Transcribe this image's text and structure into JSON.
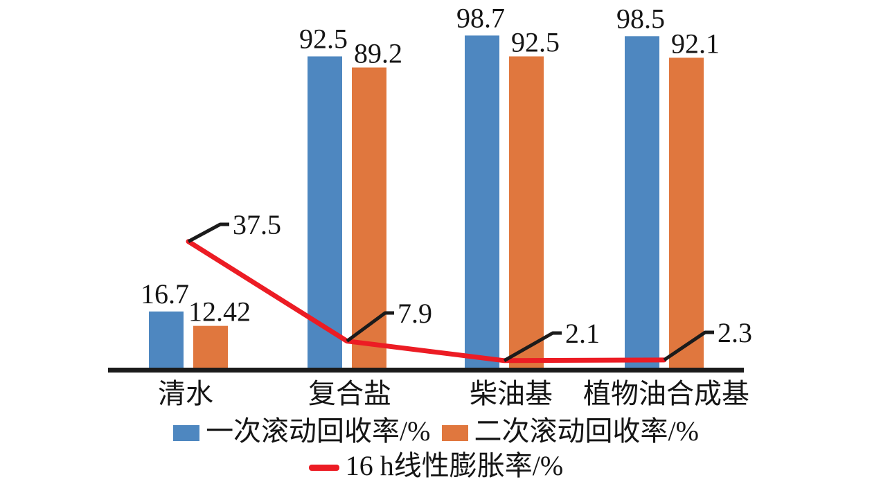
{
  "figure": {
    "background": "#ffffff",
    "axis_color": "#1b1b1b",
    "text_color": "#151515"
  },
  "chart_data": {
    "type": "bar",
    "subtype": "grouped bars with overlaid line (combo chart)",
    "title": "",
    "xlabel": "",
    "ylabel": "",
    "categories": [
      "清水",
      "复合盐",
      "柴油基",
      "植物油合成基"
    ],
    "series": [
      {
        "name": "一次滚动回收率/%",
        "type": "bar",
        "color": "#4e87c0",
        "values": [
          16.7,
          92.5,
          98.7,
          98.5
        ],
        "labels": [
          "16.7",
          "92.5",
          "98.7",
          "98.5"
        ]
      },
      {
        "name": "二次滚动回收率/%",
        "type": "bar",
        "color": "#e0773e",
        "values": [
          12.42,
          89.2,
          92.5,
          92.1
        ],
        "labels": [
          "12.42",
          "89.2",
          "92.5",
          "92.1"
        ]
      },
      {
        "name": "16 h线性膨胀率/%",
        "type": "line",
        "color": "#ec1c24",
        "values": [
          37.5,
          7.9,
          2.1,
          2.3
        ],
        "labels": [
          "37.5",
          "7.9",
          "2.1",
          "2.3"
        ],
        "callout_color": "#1b1b1b"
      }
    ],
    "ylim": [
      0,
      105
    ],
    "grid": false,
    "y_axis_visible": false,
    "x_axis_line": true,
    "value_labels": true,
    "legend_position": "bottom"
  }
}
